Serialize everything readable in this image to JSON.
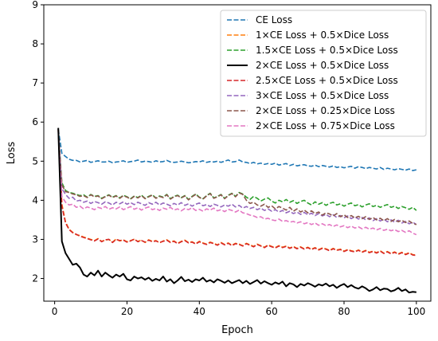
{
  "chart_data": {
    "type": "line",
    "title": "",
    "xlabel": "Epoch",
    "ylabel": "Loss",
    "xlim": [
      -3,
      104
    ],
    "ylim": [
      1.42,
      9.0
    ],
    "xticks": [
      0,
      20,
      40,
      60,
      80,
      100
    ],
    "yticks": [
      2,
      3,
      4,
      5,
      6,
      7,
      8,
      9
    ],
    "grid": false,
    "legend_position": "top-right",
    "x_start": 1,
    "x_end": 100,
    "series": [
      {
        "name": "CE Loss",
        "color": "#1f77b4",
        "style": "dashed",
        "values": [
          5.82,
          5.2,
          5.12,
          5.05,
          5.02,
          5.02,
          4.98,
          5.0,
          5.02,
          4.97,
          4.99,
          5.01,
          4.98,
          4.98,
          5.0,
          4.96,
          4.98,
          4.99,
          5.01,
          4.97,
          4.99,
          5.0,
          5.03,
          4.98,
          5.0,
          4.99,
          4.97,
          5.01,
          4.98,
          4.99,
          5.02,
          4.98,
          4.97,
          4.98,
          5.0,
          4.98,
          4.96,
          4.97,
          4.99,
          4.98,
          5.01,
          4.97,
          4.99,
          4.98,
          5.0,
          4.97,
          5.0,
          5.03,
          4.98,
          4.99,
          5.03,
          4.98,
          4.97,
          4.94,
          4.97,
          4.93,
          4.95,
          4.92,
          4.94,
          4.92,
          4.95,
          4.9,
          4.92,
          4.94,
          4.89,
          4.92,
          4.88,
          4.9,
          4.91,
          4.88,
          4.87,
          4.9,
          4.86,
          4.89,
          4.87,
          4.85,
          4.88,
          4.84,
          4.86,
          4.83,
          4.85,
          4.87,
          4.82,
          4.86,
          4.84,
          4.81,
          4.84,
          4.82,
          4.8,
          4.84,
          4.79,
          4.82,
          4.8,
          4.78,
          4.81,
          4.79,
          4.77,
          4.8,
          4.76,
          4.78
        ]
      },
      {
        "name": "1×CE Loss + 0.5×Dice Loss",
        "color": "#ff7f0e",
        "style": "dashed",
        "values": [
          5.8,
          3.9,
          3.45,
          3.26,
          3.18,
          3.12,
          3.1,
          3.06,
          3.03,
          3.0,
          2.97,
          3.02,
          2.95,
          2.98,
          3.0,
          2.93,
          3.01,
          2.96,
          2.99,
          2.94,
          2.97,
          3.0,
          2.95,
          2.98,
          2.92,
          2.99,
          2.95,
          2.97,
          2.91,
          2.96,
          2.99,
          2.93,
          2.96,
          2.9,
          2.95,
          2.98,
          2.92,
          2.94,
          2.89,
          2.95,
          2.91,
          2.88,
          2.93,
          2.9,
          2.86,
          2.92,
          2.87,
          2.91,
          2.85,
          2.9,
          2.88,
          2.84,
          2.9,
          2.86,
          2.82,
          2.88,
          2.84,
          2.8,
          2.86,
          2.82,
          2.79,
          2.84,
          2.8,
          2.83,
          2.78,
          2.82,
          2.77,
          2.81,
          2.76,
          2.8,
          2.75,
          2.79,
          2.74,
          2.78,
          2.76,
          2.72,
          2.77,
          2.73,
          2.75,
          2.7,
          2.74,
          2.71,
          2.69,
          2.73,
          2.68,
          2.72,
          2.67,
          2.7,
          2.66,
          2.71,
          2.65,
          2.69,
          2.64,
          2.68,
          2.63,
          2.67,
          2.62,
          2.66,
          2.61,
          2.6
        ]
      },
      {
        "name": "1.5×CE Loss + 0.5×Dice Loss",
        "color": "#2ca02c",
        "style": "dashed",
        "values": [
          5.82,
          4.45,
          4.25,
          4.2,
          4.18,
          4.15,
          4.12,
          4.14,
          4.08,
          4.15,
          4.1,
          4.12,
          4.05,
          4.1,
          4.14,
          4.08,
          4.12,
          4.06,
          4.13,
          4.09,
          4.04,
          4.11,
          4.07,
          4.13,
          4.05,
          4.1,
          4.14,
          4.06,
          4.11,
          4.08,
          4.15,
          4.04,
          4.1,
          4.13,
          4.07,
          4.12,
          4.02,
          4.1,
          4.16,
          4.08,
          4.04,
          4.12,
          4.18,
          4.06,
          4.1,
          4.15,
          4.05,
          4.13,
          4.18,
          4.1,
          4.2,
          4.16,
          4.08,
          4.02,
          4.1,
          4.05,
          3.98,
          4.03,
          4.06,
          3.98,
          3.93,
          4.0,
          3.96,
          4.02,
          3.95,
          3.99,
          3.92,
          3.97,
          4.0,
          3.93,
          3.88,
          3.96,
          3.9,
          3.94,
          3.87,
          3.92,
          3.95,
          3.88,
          3.91,
          3.85,
          3.9,
          3.93,
          3.86,
          3.89,
          3.83,
          3.88,
          3.91,
          3.84,
          3.87,
          3.82,
          3.86,
          3.89,
          3.82,
          3.85,
          3.79,
          3.84,
          3.81,
          3.77,
          3.82,
          3.74
        ]
      },
      {
        "name": "2×CE Loss + 0.5×Dice Loss",
        "color": "#000000",
        "style": "solid",
        "values": [
          5.85,
          2.95,
          2.65,
          2.5,
          2.35,
          2.38,
          2.28,
          2.1,
          2.05,
          2.15,
          2.08,
          2.2,
          2.05,
          2.15,
          2.08,
          2.02,
          2.1,
          2.05,
          2.12,
          1.98,
          1.95,
          2.05,
          2.0,
          2.03,
          1.97,
          2.02,
          1.94,
          1.99,
          1.95,
          2.05,
          1.92,
          1.98,
          1.88,
          1.95,
          2.04,
          1.93,
          1.97,
          1.91,
          1.98,
          1.95,
          2.02,
          1.92,
          1.96,
          1.9,
          1.98,
          1.94,
          1.89,
          1.95,
          1.88,
          1.92,
          1.96,
          1.88,
          1.94,
          1.86,
          1.91,
          1.96,
          1.87,
          1.93,
          1.88,
          1.84,
          1.9,
          1.86,
          1.92,
          1.8,
          1.88,
          1.85,
          1.78,
          1.86,
          1.82,
          1.88,
          1.84,
          1.79,
          1.85,
          1.82,
          1.87,
          1.8,
          1.84,
          1.76,
          1.82,
          1.86,
          1.78,
          1.83,
          1.77,
          1.74,
          1.8,
          1.75,
          1.68,
          1.72,
          1.78,
          1.7,
          1.74,
          1.73,
          1.67,
          1.7,
          1.76,
          1.68,
          1.72,
          1.64,
          1.66,
          1.65
        ]
      },
      {
        "name": "2.5×CE Loss + 0.5×Dice Loss",
        "color": "#d62728",
        "style": "dashed",
        "values": [
          5.8,
          3.85,
          3.42,
          3.25,
          3.17,
          3.13,
          3.08,
          3.05,
          3.02,
          2.99,
          2.96,
          3.01,
          2.94,
          2.99,
          3.0,
          2.92,
          3.0,
          2.97,
          2.98,
          2.93,
          2.96,
          3.01,
          2.94,
          2.97,
          2.93,
          2.98,
          2.94,
          2.96,
          2.92,
          2.95,
          2.98,
          2.92,
          2.95,
          2.89,
          2.94,
          2.97,
          2.91,
          2.93,
          2.88,
          2.94,
          2.9,
          2.87,
          2.92,
          2.89,
          2.85,
          2.91,
          2.86,
          2.9,
          2.84,
          2.89,
          2.87,
          2.83,
          2.89,
          2.85,
          2.81,
          2.87,
          2.83,
          2.79,
          2.85,
          2.81,
          2.78,
          2.83,
          2.79,
          2.82,
          2.77,
          2.81,
          2.76,
          2.8,
          2.75,
          2.79,
          2.74,
          2.78,
          2.73,
          2.77,
          2.75,
          2.71,
          2.76,
          2.72,
          2.74,
          2.69,
          2.73,
          2.7,
          2.68,
          2.72,
          2.67,
          2.71,
          2.66,
          2.69,
          2.65,
          2.7,
          2.64,
          2.68,
          2.63,
          2.67,
          2.62,
          2.66,
          2.61,
          2.65,
          2.6,
          2.59
        ]
      },
      {
        "name": "3×CE Loss + 0.5×Dice Loss",
        "color": "#9467bd",
        "style": "dashed",
        "values": [
          5.82,
          4.3,
          4.15,
          4.05,
          4.08,
          3.98,
          4.0,
          3.95,
          3.98,
          3.92,
          3.97,
          3.94,
          3.9,
          3.96,
          3.93,
          3.88,
          3.95,
          3.91,
          3.96,
          3.9,
          3.94,
          3.89,
          3.95,
          3.91,
          3.87,
          3.94,
          3.9,
          3.95,
          3.88,
          3.93,
          3.9,
          3.86,
          3.92,
          3.88,
          3.94,
          3.87,
          3.91,
          3.85,
          3.9,
          3.93,
          3.86,
          3.89,
          3.84,
          3.9,
          3.87,
          3.83,
          3.88,
          3.85,
          3.9,
          3.83,
          3.87,
          3.8,
          3.84,
          3.79,
          3.82,
          3.76,
          3.8,
          3.74,
          3.78,
          3.72,
          3.76,
          3.7,
          3.74,
          3.68,
          3.72,
          3.66,
          3.7,
          3.64,
          3.69,
          3.63,
          3.67,
          3.61,
          3.66,
          3.6,
          3.64,
          3.58,
          3.63,
          3.56,
          3.61,
          3.55,
          3.6,
          3.53,
          3.58,
          3.52,
          3.56,
          3.5,
          3.55,
          3.48,
          3.53,
          3.47,
          3.52,
          3.45,
          3.5,
          3.44,
          3.49,
          3.42,
          3.46,
          3.4,
          3.44,
          3.38
        ]
      },
      {
        "name": "2×CE Loss + 0.25×Dice Loss",
        "color": "#8c564b",
        "style": "dashed",
        "values": [
          5.78,
          4.4,
          4.22,
          4.2,
          4.16,
          4.14,
          4.1,
          4.12,
          4.07,
          4.14,
          4.09,
          4.11,
          4.04,
          4.09,
          4.13,
          4.07,
          4.11,
          4.05,
          4.12,
          4.08,
          4.03,
          4.1,
          4.06,
          4.12,
          4.04,
          4.09,
          4.13,
          4.05,
          4.1,
          4.07,
          4.14,
          4.03,
          4.09,
          4.12,
          4.06,
          4.11,
          4.01,
          4.09,
          4.15,
          4.07,
          4.03,
          4.11,
          4.17,
          4.05,
          4.09,
          4.14,
          4.04,
          4.12,
          4.17,
          4.09,
          4.19,
          4.15,
          4.0,
          3.92,
          3.95,
          3.88,
          3.85,
          3.9,
          3.82,
          3.86,
          3.78,
          3.84,
          3.8,
          3.75,
          3.82,
          3.72,
          3.78,
          3.7,
          3.75,
          3.68,
          3.73,
          3.66,
          3.7,
          3.62,
          3.68,
          3.65,
          3.6,
          3.66,
          3.58,
          3.63,
          3.56,
          3.61,
          3.55,
          3.59,
          3.53,
          3.58,
          3.51,
          3.56,
          3.5,
          3.54,
          3.48,
          3.53,
          3.46,
          3.51,
          3.45,
          3.49,
          3.43,
          3.47,
          3.41,
          3.38
        ]
      },
      {
        "name": "2×CE Loss + 0.75×Dice Loss",
        "color": "#e377c2",
        "style": "dashed",
        "values": [
          5.75,
          4.1,
          3.95,
          3.88,
          3.9,
          3.82,
          3.85,
          3.78,
          3.83,
          3.8,
          3.76,
          3.82,
          3.79,
          3.84,
          3.77,
          3.81,
          3.78,
          3.83,
          3.76,
          3.8,
          3.84,
          3.77,
          3.81,
          3.75,
          3.8,
          3.83,
          3.76,
          3.79,
          3.74,
          3.8,
          3.77,
          3.82,
          3.75,
          3.78,
          3.73,
          3.79,
          3.76,
          3.81,
          3.74,
          3.77,
          3.72,
          3.78,
          3.75,
          3.8,
          3.73,
          3.76,
          3.71,
          3.77,
          3.74,
          3.7,
          3.75,
          3.68,
          3.66,
          3.62,
          3.6,
          3.56,
          3.58,
          3.52,
          3.54,
          3.5,
          3.48,
          3.52,
          3.46,
          3.48,
          3.44,
          3.46,
          3.42,
          3.45,
          3.4,
          3.43,
          3.38,
          3.42,
          3.36,
          3.4,
          3.35,
          3.38,
          3.33,
          3.37,
          3.32,
          3.35,
          3.3,
          3.34,
          3.29,
          3.32,
          3.27,
          3.31,
          3.26,
          3.29,
          3.24,
          3.28,
          3.23,
          3.26,
          3.22,
          3.25,
          3.2,
          3.23,
          3.18,
          3.22,
          3.16,
          3.12
        ]
      }
    ]
  }
}
